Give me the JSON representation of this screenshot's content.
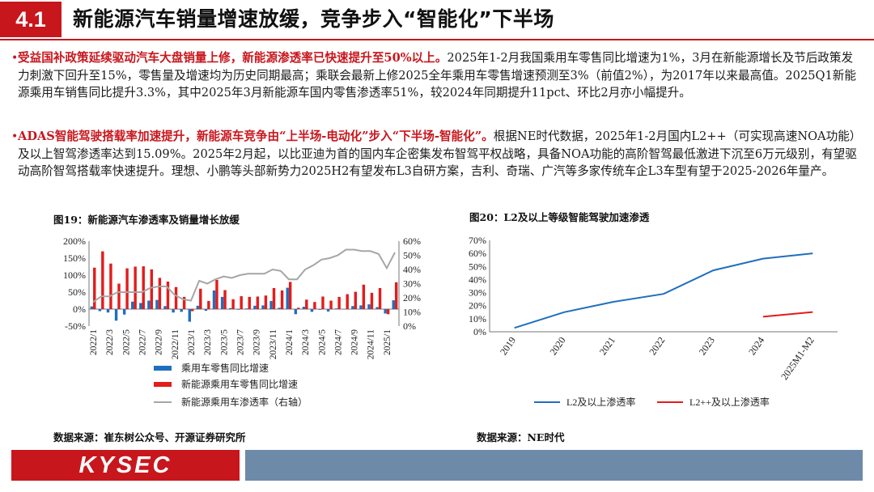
{
  "header": {
    "section_number": "4.1",
    "title": "新能源汽车销量增速放缓，竞争步入“智能化”下半场"
  },
  "bullets": [
    {
      "highlight": "受益国补政策延续驱动汽车大盘销量上修，新能源渗透率已快速提升至50%以上。",
      "text": "2025年1-2月我国乘用车零售同比增速为1%，3月在新能源增长及节后政策发力刺激下回升至15%，零售量及增速均为历史同期最高；乘联会最新上修2025全年乘用车零售增速预测至3%（前值2%），为2017年以来最高值。2025Q1新能源乘用车销售同比提升3.3%，其中2025年3月新能源车国内零售渗透率51%，较2024年同期提升11pct、环比2月亦小幅提升。"
    },
    {
      "highlight": "ADAS智能驾驶搭载率加速提升，新能源车竞争由“上半场-电动化”步入“下半场-智能化”。",
      "text": "根据NE时代数据，2025年1-2月国内L2++（可实现高速NOA功能）及以上智驾渗透率达到15.09%。2025年2月起，以比亚迪为首的国内车企密集发布智驾平权战略，具备NOA功能的高阶智驾最低激进下沉至6万元级别，有望驱动高阶智驾搭载率快速提升。理想、小鹏等头部新势力2025H2有望发布L3自研方案，吉利、奇瑞、广汽等多家传统车企L3车型有望于2025-2026年量产。"
    }
  ],
  "figure_left": {
    "caption": "图19：新能源汽车渗透率及销量增长放缓",
    "source": "数据来源：崔东树公众号、开源证券研究所"
  },
  "figure_right": {
    "caption": "图20：L2及以上等级智能驾驶加速渗透",
    "source": "数据来源：NE时代"
  },
  "footer": {
    "logo": "KYSEC"
  },
  "colors": {
    "accent_red": "#c8161d",
    "bar_blue": "#1f6fbf",
    "line_gray": "#a6a6a6",
    "footer_bar": "#6d8aa8"
  },
  "chart_data": [
    {
      "type": "bar",
      "title": "图19：新能源汽车渗透率及销量增长放缓",
      "x": [
        "2022/1",
        "2022/2",
        "2022/3",
        "2022/4",
        "2022/5",
        "2022/6",
        "2022/7",
        "2022/8",
        "2022/9",
        "2022/10",
        "2022/11",
        "2022/12",
        "2023/1",
        "2023/2",
        "2023/3",
        "2023/4",
        "2023/5",
        "2023/6",
        "2023/7",
        "2023/8",
        "2023/9",
        "2023/10",
        "2023/11",
        "2023/12",
        "2024/1",
        "2024/2",
        "2024/3",
        "2024/4",
        "2024/5",
        "2024/6",
        "2024/7",
        "2024/8",
        "2024/9",
        "2024/10",
        "2024/11",
        "2024/12",
        "2025/1",
        "2025/2"
      ],
      "xtick_labels": [
        "2022/1",
        "2022/3",
        "2022/5",
        "2022/7",
        "2022/9",
        "2022/11",
        "2023/1",
        "2023/3",
        "2023/5",
        "2023/7",
        "2023/9",
        "2023/11",
        "2024/1",
        "2024/3",
        "2024/5",
        "2024/7",
        "2024/9",
        "2024/11",
        "2025/1"
      ],
      "series": [
        {
          "name": "乘用车零售同比增速",
          "axis": "left",
          "color": "#1f6fbf",
          "values": [
            8,
            -6,
            -10,
            -34,
            -16,
            22,
            18,
            25,
            27,
            9,
            -10,
            -8,
            -37,
            10,
            -5,
            55,
            36,
            3,
            -2,
            2,
            10,
            11,
            24,
            4,
            63,
            -15,
            7,
            -8,
            -2,
            -7,
            2,
            -1,
            9,
            11,
            14,
            6,
            -13,
            26
          ]
        },
        {
          "name": "新能源乘用车零售同比增速",
          "axis": "left",
          "color": "#e31c1c",
          "values": [
            122,
            170,
            134,
            75,
            120,
            125,
            126,
            117,
            92,
            81,
            65,
            36,
            -6,
            60,
            24,
            86,
            56,
            29,
            38,
            36,
            37,
            40,
            62,
            55,
            80,
            4,
            28,
            21,
            37,
            25,
            36,
            44,
            51,
            72,
            48,
            62,
            -15,
            79
          ]
        },
        {
          "name": "新能源乘用车渗透率（右轴）",
          "axis": "right",
          "color": "#a6a6a6",
          "type": "line",
          "values": [
            17,
            21,
            21,
            24,
            24,
            24,
            24,
            27,
            28,
            28,
            22,
            19,
            18,
            32,
            30,
            33,
            35,
            34,
            36,
            37,
            37,
            37,
            40,
            39,
            33,
            33,
            40,
            43,
            47,
            48,
            50,
            54,
            54,
            53,
            53,
            51,
            41,
            52
          ]
        }
      ],
      "legend": [
        "乘用车零售同比增速",
        "新能源乘用车零售同比增速",
        "新能源乘用车渗透率（右轴）"
      ],
      "ylim_left": [
        -50,
        200
      ],
      "yticks_left": [
        "-50%",
        "0%",
        "50%",
        "100%",
        "150%",
        "200%"
      ],
      "ylim_right": [
        0,
        60
      ],
      "yticks_right": [
        "0%",
        "10%",
        "20%",
        "30%",
        "40%",
        "50%",
        "60%"
      ],
      "legend_position": "bottom"
    },
    {
      "type": "line",
      "title": "图20：L2及以上等级智能驾驶加速渗透",
      "categories": [
        "2019",
        "2020",
        "2021",
        "2022",
        "2023",
        "2024",
        "2025M1-M2"
      ],
      "series": [
        {
          "name": "L2及以上渗透率",
          "color": "#1f6fbf",
          "values": [
            3,
            15,
            23,
            29,
            47,
            56,
            60
          ]
        },
        {
          "name": "L2++及以上渗透率",
          "color": "#e31c1c",
          "values": [
            null,
            null,
            null,
            null,
            null,
            11.5,
            15.1
          ]
        }
      ],
      "ylim": [
        0,
        70
      ],
      "yticks": [
        "0%",
        "10%",
        "20%",
        "30%",
        "40%",
        "50%",
        "60%",
        "70%"
      ],
      "legend_position": "bottom"
    }
  ]
}
